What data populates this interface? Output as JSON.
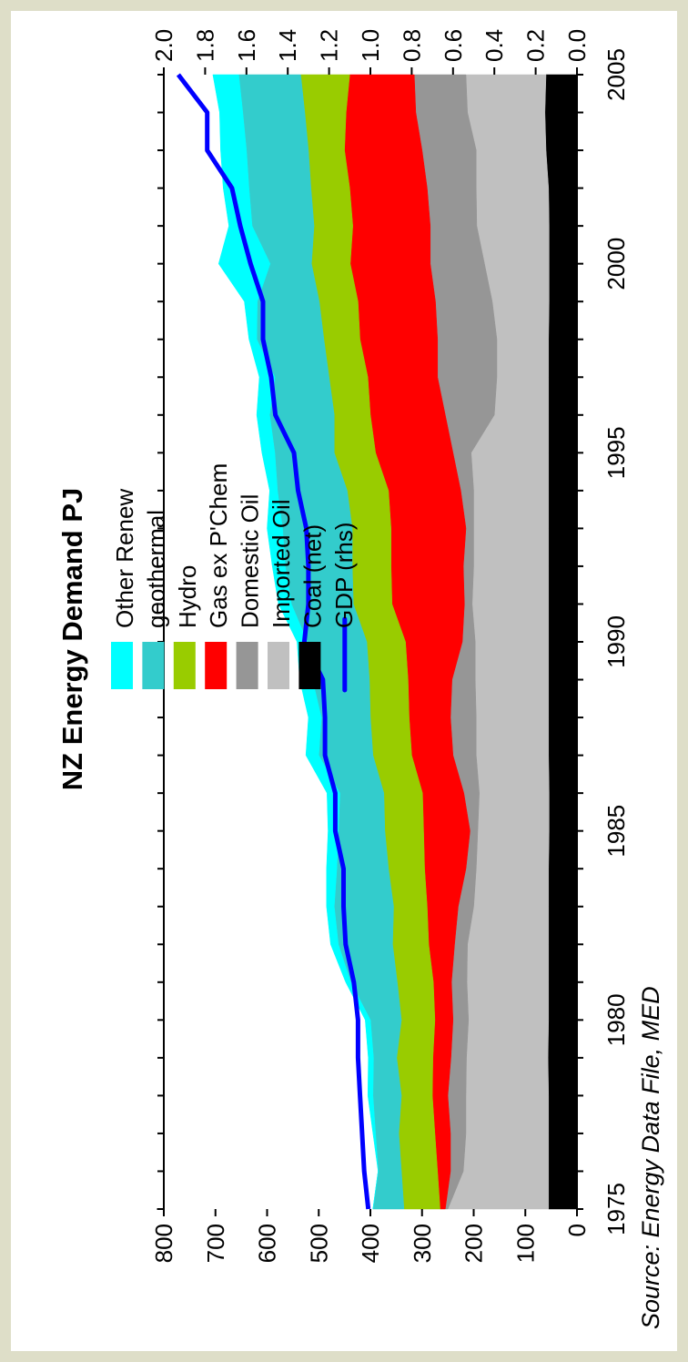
{
  "chart_data": {
    "type": "area",
    "title": "NZ Energy Demand PJ",
    "source": "Source: Energy Data File, MED",
    "xlabel": "",
    "ylabel": "",
    "x": [
      1975,
      1976,
      1977,
      1978,
      1979,
      1980,
      1981,
      1982,
      1983,
      1984,
      1985,
      1986,
      1987,
      1988,
      1989,
      1990,
      1991,
      1992,
      1993,
      1994,
      1995,
      1996,
      1997,
      1998,
      1999,
      2000,
      2001,
      2002,
      2003,
      2004,
      2005
    ],
    "x_ticks": [
      1975,
      1980,
      1985,
      1990,
      1995,
      2000,
      2005
    ],
    "ylim_left": [
      0,
      800
    ],
    "y_ticks_left": [
      0,
      100,
      200,
      300,
      400,
      500,
      600,
      700,
      800
    ],
    "ylim_right": [
      0,
      2.0
    ],
    "y_ticks_right": [
      "0.0",
      "0.2",
      "0.4",
      "0.6",
      "0.8",
      "1.0",
      "1.2",
      "1.4",
      "1.6",
      "1.8",
      "2.0"
    ],
    "series": [
      {
        "name": "Coal (net)",
        "color": "#000000",
        "values": [
          55,
          55,
          55,
          55,
          56,
          55,
          55,
          55,
          55,
          55,
          54,
          54,
          55,
          55,
          55,
          55,
          55,
          55,
          55,
          55,
          55,
          55,
          55,
          55,
          54,
          54,
          54,
          55,
          60,
          62,
          60
        ]
      },
      {
        "name": "Imported Oil",
        "color": "#c0c0c0",
        "values": [
          195,
          165,
          160,
          160,
          158,
          155,
          158,
          157,
          145,
          140,
          138,
          135,
          140,
          140,
          142,
          142,
          148,
          145,
          145,
          145,
          150,
          105,
          100,
          100,
          110,
          125,
          140,
          140,
          135,
          150,
          155
        ]
      },
      {
        "name": "Domestic Oil",
        "color": "#969696",
        "values": [
          5,
          25,
          30,
          35,
          30,
          30,
          30,
          25,
          30,
          20,
          15,
          30,
          45,
          50,
          45,
          25,
          15,
          20,
          15,
          25,
          35,
          95,
          115,
          115,
          110,
          105,
          90,
          95,
          105,
          100,
          100
        ]
      },
      {
        "name": "Gas ex P'Chem",
        "color": "#ff0000",
        "values": [
          10,
          25,
          30,
          30,
          35,
          35,
          35,
          50,
          60,
          80,
          90,
          80,
          80,
          80,
          85,
          110,
          140,
          140,
          145,
          140,
          150,
          145,
          135,
          150,
          150,
          155,
          150,
          150,
          150,
          135,
          125
        ]
      },
      {
        "name": "Hydro",
        "color": "#99cc00",
        "values": [
          70,
          70,
          70,
          60,
          70,
          65,
          70,
          70,
          65,
          70,
          75,
          75,
          75,
          75,
          75,
          75,
          75,
          75,
          75,
          80,
          80,
          70,
          75,
          70,
          75,
          75,
          75,
          75,
          70,
          80,
          95
        ]
      },
      {
        "name": "geothermal",
        "color": "#33cccc",
        "values": [
          60,
          45,
          45,
          55,
          45,
          60,
          90,
          105,
          115,
          100,
          90,
          85,
          105,
          95,
          110,
          115,
          120,
          130,
          135,
          135,
          115,
          125,
          105,
          130,
          120,
          80,
          120,
          120,
          120,
          120,
          120
        ]
      },
      {
        "name": "Other Renew",
        "color": "#00ffff",
        "values": [
          0,
          0,
          5,
          10,
          10,
          10,
          10,
          15,
          15,
          20,
          20,
          25,
          25,
          25,
          25,
          20,
          25,
          25,
          30,
          15,
          25,
          25,
          30,
          15,
          25,
          100,
          45,
          50,
          50,
          45,
          50
        ]
      }
    ],
    "gdp_series": {
      "name": "GDP (rhs)",
      "color": "#0000ff",
      "values": [
        1.01,
        1.03,
        1.04,
        1.05,
        1.06,
        1.06,
        1.08,
        1.12,
        1.13,
        1.13,
        1.17,
        1.17,
        1.22,
        1.22,
        1.23,
        1.32,
        1.3,
        1.3,
        1.31,
        1.35,
        1.37,
        1.46,
        1.48,
        1.52,
        1.52,
        1.58,
        1.63,
        1.67,
        1.79,
        1.79,
        1.93
      ]
    },
    "legend": [
      "Other Renew",
      "geothermal",
      "Hydro",
      "Gas ex P'Chem",
      "Domestic Oil",
      "Imported Oil",
      "Coal (net)",
      "GDP (rhs)"
    ],
    "grid": false,
    "legend_position": "top-left"
  }
}
